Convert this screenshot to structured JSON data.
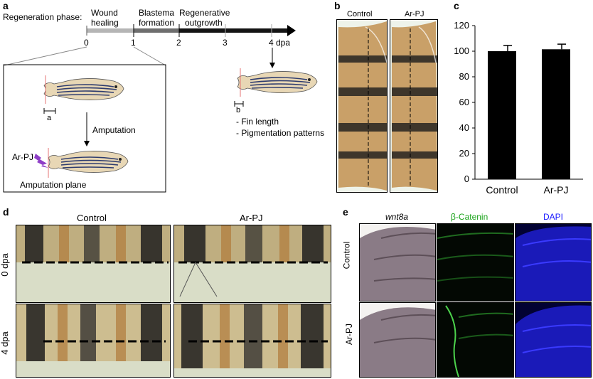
{
  "panel_a": {
    "label": "a",
    "phase_label": "Regeneration phase:",
    "phases": [
      "Wound\nhealing",
      "Blastema\nformation",
      "Regenerative\noutgrowth"
    ],
    "ticks": [
      "0",
      "1",
      "2",
      "3",
      "4 dpa"
    ],
    "measure_a": "a",
    "measure_b": "b",
    "amputation": "Amputation",
    "treatment": "Ar-PJ",
    "amputation_plane": "Amputation plane",
    "readouts": [
      "- Fin length",
      "- Pigmentation patterns"
    ]
  },
  "panel_b": {
    "label": "b",
    "columns": [
      "Control",
      "Ar-PJ"
    ]
  },
  "panel_c": {
    "label": "c"
  },
  "panel_d": {
    "label": "d",
    "columns": [
      "Control",
      "Ar-PJ"
    ],
    "rows": [
      "0 dpa",
      "4 dpa"
    ]
  },
  "panel_e": {
    "label": "e",
    "columns": [
      "wnt8a",
      "β-Catenin",
      "DAPI"
    ],
    "column_colors": [
      "#000000",
      "#1aa31a",
      "#1a1aff"
    ],
    "rows": [
      "Control",
      "Ar-PJ"
    ]
  },
  "chart_data": {
    "type": "bar",
    "categories": [
      "Control",
      "Ar-PJ"
    ],
    "values": [
      100,
      101.5
    ],
    "errors": [
      4.5,
      4
    ],
    "ylim": [
      0,
      120
    ],
    "yticks": [
      0,
      20,
      40,
      60,
      80,
      100,
      120
    ],
    "xlabel": "",
    "ylabel": "",
    "bar_color": "#000000"
  }
}
